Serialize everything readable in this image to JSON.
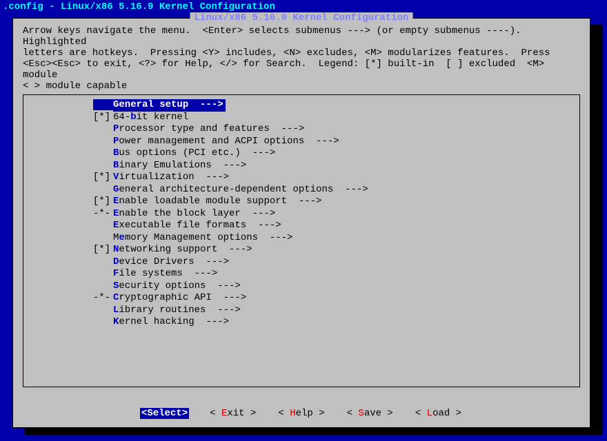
{
  "colors": {
    "bg": "#0000aa",
    "panel": "#c0c0c0",
    "title_cyan": "#00ffff",
    "box_title": "#8080ff",
    "hotkey_blue": "#0000cc",
    "hotkey_red": "#cc0000",
    "sel_bg": "#0000aa",
    "sel_fg": "#ffffff",
    "sel_marker": "#ffff00",
    "shadow": "#000000"
  },
  "titlebar": ".config - Linux/x86 5.16.9 Kernel Configuration",
  "box_title": " Linux/x86 5.16.9 Kernel Configuration ",
  "help_text": "Arrow keys navigate the menu.  <Enter> selects submenus ---> (or empty submenus ----).  Highlighted\nletters are hotkeys.  Pressing <Y> includes, <N> excludes, <M> modularizes features.  Press\n<Esc><Esc> to exit, <?> for Help, </> for Search.  Legend: [*] built-in  [ ] excluded  <M> module\n< > module capable",
  "menu": {
    "selected_index": 0,
    "items": [
      {
        "prefix": "   ",
        "hotkey": "G",
        "rest": "eneral setup  --->",
        "selected": true
      },
      {
        "prefix": "[*] ",
        "before": "64-",
        "hotkey": "b",
        "rest": "it kernel"
      },
      {
        "prefix": "    ",
        "hotkey": "P",
        "rest": "rocessor type and features  --->"
      },
      {
        "prefix": "    ",
        "hotkey": "P",
        "rest": "ower management and ACPI options  --->"
      },
      {
        "prefix": "    ",
        "hotkey": "B",
        "rest": "us options (PCI etc.)  --->"
      },
      {
        "prefix": "    ",
        "hotkey": "B",
        "rest": "inary Emulations  --->"
      },
      {
        "prefix": "[*] ",
        "hotkey": "V",
        "rest": "irtualization  --->"
      },
      {
        "prefix": "    ",
        "hotkey": "G",
        "rest": "eneral architecture-dependent options  --->"
      },
      {
        "prefix": "[*] ",
        "hotkey": "E",
        "rest": "nable loadable module support  --->"
      },
      {
        "prefix": "-*- ",
        "hotkey": "E",
        "rest": "nable the block layer  --->"
      },
      {
        "prefix": "    ",
        "hotkey": "E",
        "rest": "xecutable file formats  --->"
      },
      {
        "prefix": "    ",
        "before": "M",
        "hotkey": "e",
        "rest": "mory Management options  --->"
      },
      {
        "prefix": "[*] ",
        "hotkey": "N",
        "rest": "etworking support  --->"
      },
      {
        "prefix": "    ",
        "hotkey": "D",
        "rest": "evice Drivers  --->"
      },
      {
        "prefix": "    ",
        "hotkey": "F",
        "rest": "ile systems  --->"
      },
      {
        "prefix": "    ",
        "hotkey": "S",
        "rest": "ecurity options  --->"
      },
      {
        "prefix": "-*- ",
        "hotkey": "C",
        "rest": "ryptographic API  --->"
      },
      {
        "prefix": "    ",
        "hotkey": "L",
        "rest": "ibrary routines  --->"
      },
      {
        "prefix": "    ",
        "hotkey": "K",
        "rest": "ernel hacking  --->"
      }
    ]
  },
  "buttons": [
    {
      "before": "<",
      "hotkey": "S",
      "after": "elect>",
      "selected": true
    },
    {
      "before": "< ",
      "hotkey": "E",
      "after": "xit >"
    },
    {
      "before": "< ",
      "hotkey": "H",
      "after": "elp >"
    },
    {
      "before": "< ",
      "hotkey": "S",
      "after": "ave >"
    },
    {
      "before": "< ",
      "hotkey": "L",
      "after": "oad >"
    }
  ]
}
